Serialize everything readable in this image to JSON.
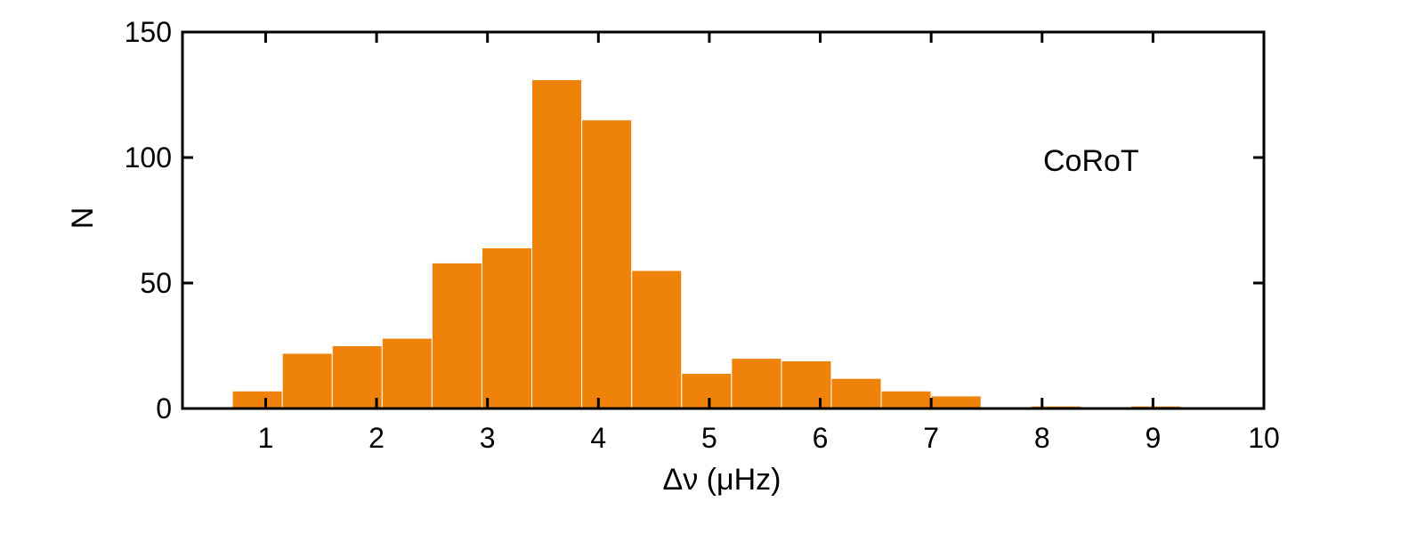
{
  "chart_data": {
    "type": "bar",
    "title": "",
    "xlabel": "Δν (μHz)",
    "ylabel": "N",
    "xlim": [
      0.25,
      10
    ],
    "ylim": [
      0,
      150
    ],
    "xticks": [
      "1",
      "2",
      "3",
      "4",
      "5",
      "6",
      "7",
      "8",
      "9",
      "10"
    ],
    "yticks": [
      "0",
      "50",
      "100",
      "150"
    ],
    "grid": false,
    "bar_color": "#EF8209",
    "annotation": "CoRoT",
    "bins": [
      {
        "left": 0.7,
        "right": 1.15,
        "value": 7
      },
      {
        "left": 1.15,
        "right": 1.6,
        "value": 22
      },
      {
        "left": 1.6,
        "right": 2.05,
        "value": 25
      },
      {
        "left": 2.05,
        "right": 2.5,
        "value": 28
      },
      {
        "left": 2.5,
        "right": 2.95,
        "value": 58
      },
      {
        "left": 2.95,
        "right": 3.4,
        "value": 64
      },
      {
        "left": 3.4,
        "right": 3.85,
        "value": 131
      },
      {
        "left": 3.85,
        "right": 4.3,
        "value": 115
      },
      {
        "left": 4.3,
        "right": 4.75,
        "value": 55
      },
      {
        "left": 4.75,
        "right": 5.2,
        "value": 14
      },
      {
        "left": 5.2,
        "right": 5.65,
        "value": 20
      },
      {
        "left": 5.65,
        "right": 6.1,
        "value": 19
      },
      {
        "left": 6.1,
        "right": 6.55,
        "value": 12
      },
      {
        "left": 6.55,
        "right": 7.0,
        "value": 7
      },
      {
        "left": 7.0,
        "right": 7.45,
        "value": 5
      },
      {
        "left": 7.45,
        "right": 7.9,
        "value": 0
      },
      {
        "left": 7.9,
        "right": 8.35,
        "value": 1
      },
      {
        "left": 8.35,
        "right": 8.8,
        "value": 0
      },
      {
        "left": 8.8,
        "right": 9.25,
        "value": 1
      }
    ]
  }
}
